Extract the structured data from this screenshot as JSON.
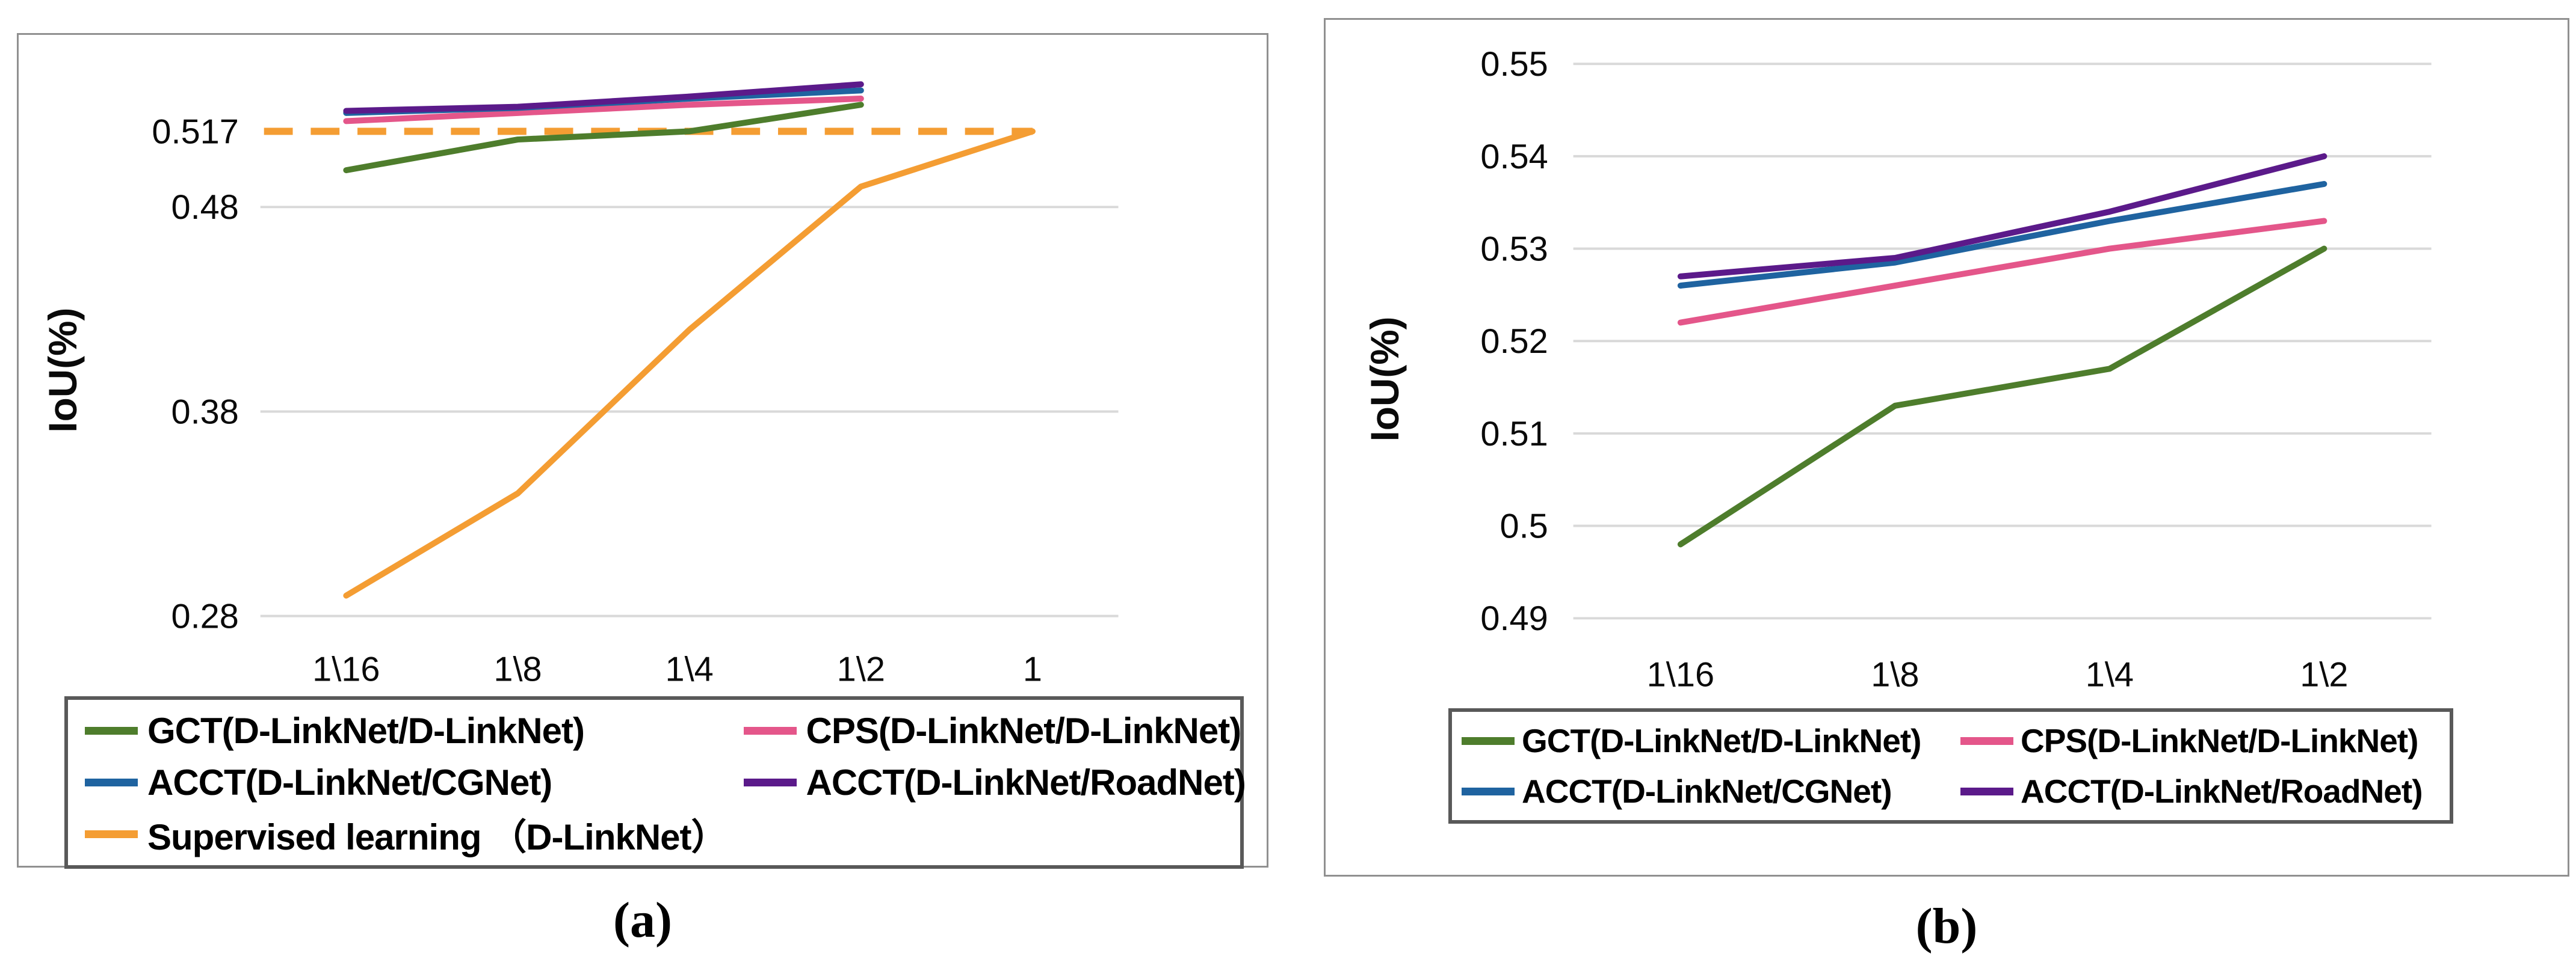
{
  "colors": {
    "green": "#4e7d2c",
    "pink": "#e4568a",
    "blue": "#1f63a0",
    "purple": "#5b1a8a",
    "orange": "#f49d33",
    "gridline": "#d9d9d9",
    "axis_text": "#0a0a0a",
    "panel_border": "#909090",
    "legend_border": "#595959"
  },
  "chart_data": [
    {
      "id": "a",
      "type": "line",
      "caption": "(a)",
      "ylabel": "IoU(%)",
      "categories": [
        "1\\16",
        "1\\8",
        "1\\4",
        "1\\2",
        "1"
      ],
      "ylim": [
        0.27,
        0.551
      ],
      "grid": true,
      "legend_position": "bottom",
      "y_ticks": [
        {
          "value": 0.517,
          "label": "0.517",
          "gridline": false
        },
        {
          "value": 0.48,
          "label": "0.48",
          "gridline": true
        },
        {
          "value": 0.38,
          "label": "0.38",
          "gridline": true
        },
        {
          "value": 0.28,
          "label": "0.28",
          "gridline": true
        }
      ],
      "reference_line": {
        "value": 0.517,
        "style": "dashed",
        "color": "orange"
      },
      "series": [
        {
          "name": "GCT(D-LinkNet/D-LinkNet)",
          "color": "green",
          "values": [
            0.498,
            0.513,
            0.517,
            0.53
          ]
        },
        {
          "name": "CPS(D-LinkNet/D-LinkNet)",
          "color": "pink",
          "values": [
            0.522,
            0.526,
            0.53,
            0.533
          ]
        },
        {
          "name": "ACCT(D-LinkNet/CGNet)",
          "color": "blue",
          "values": [
            0.526,
            0.5285,
            0.533,
            0.537
          ]
        },
        {
          "name": "ACCT(D-LinkNet/RoadNet)",
          "color": "purple",
          "values": [
            0.527,
            0.529,
            0.534,
            0.54
          ]
        },
        {
          "name": "Supervised learning （D-LinkNet）",
          "color": "orange",
          "values": [
            0.29,
            0.34,
            0.42,
            0.49,
            0.517
          ]
        }
      ]
    },
    {
      "id": "b",
      "type": "line",
      "caption": "(b)",
      "ylabel": "IoU(%)",
      "categories": [
        "1\\16",
        "1\\8",
        "1\\4",
        "1\\2"
      ],
      "ylim": [
        0.4877,
        0.5512
      ],
      "grid": true,
      "legend_position": "bottom",
      "y_ticks": [
        {
          "value": 0.55,
          "label": "0.55",
          "gridline": true
        },
        {
          "value": 0.54,
          "label": "0.54",
          "gridline": true
        },
        {
          "value": 0.53,
          "label": "0.53",
          "gridline": true
        },
        {
          "value": 0.52,
          "label": "0.52",
          "gridline": true
        },
        {
          "value": 0.51,
          "label": "0.51",
          "gridline": true
        },
        {
          "value": 0.5,
          "label": "0.5",
          "gridline": true
        },
        {
          "value": 0.49,
          "label": "0.49",
          "gridline": true
        }
      ],
      "series": [
        {
          "name": "GCT(D-LinkNet/D-LinkNet)",
          "color": "green",
          "values": [
            0.498,
            0.513,
            0.517,
            0.53
          ]
        },
        {
          "name": "CPS(D-LinkNet/D-LinkNet)",
          "color": "pink",
          "values": [
            0.522,
            0.526,
            0.53,
            0.533
          ]
        },
        {
          "name": "ACCT(D-LinkNet/CGNet)",
          "color": "blue",
          "values": [
            0.526,
            0.5285,
            0.533,
            0.537
          ]
        },
        {
          "name": "ACCT(D-LinkNet/RoadNet)",
          "color": "purple",
          "values": [
            0.527,
            0.529,
            0.534,
            0.54
          ]
        }
      ]
    }
  ]
}
